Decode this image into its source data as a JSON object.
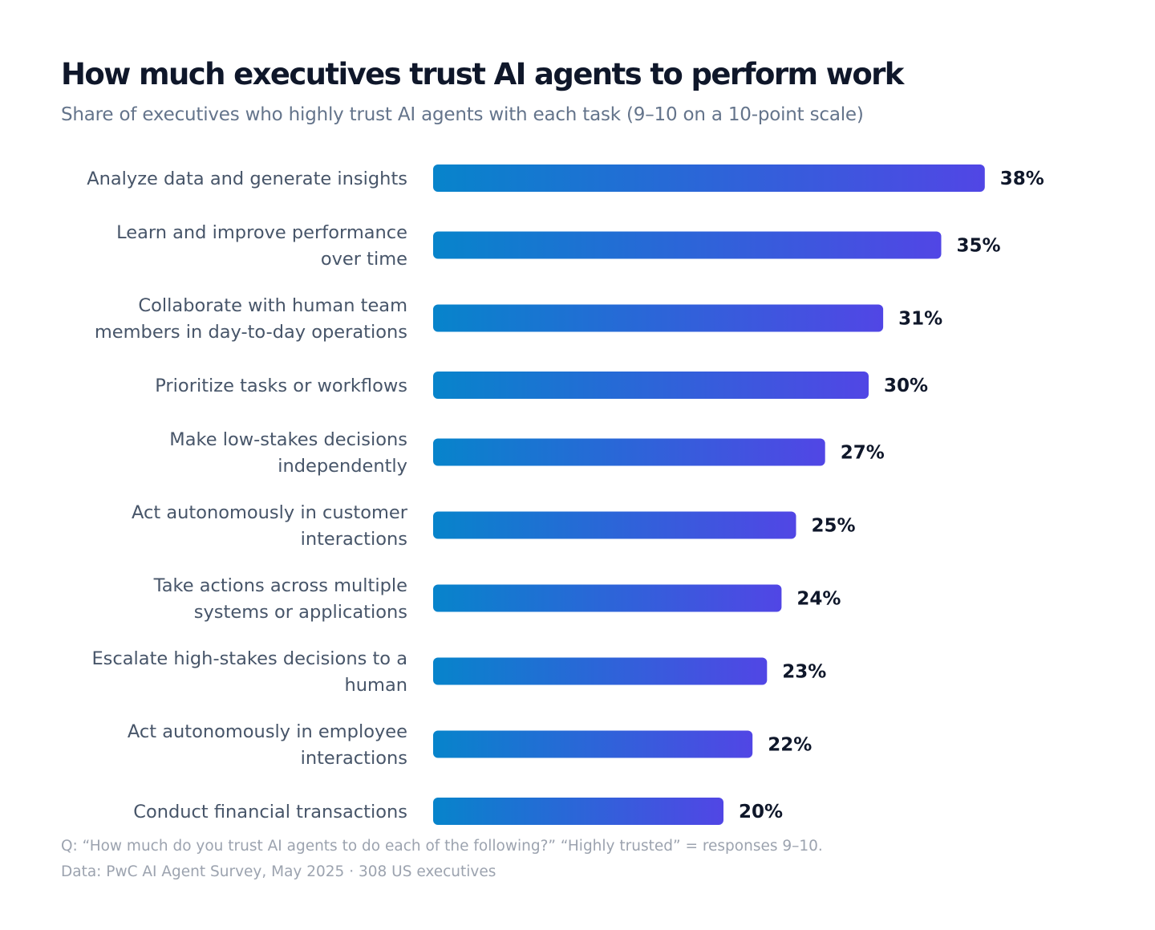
{
  "title": "How much executives trust AI agents to perform work",
  "subtitle": "Share of executives who highly trust AI agents with each task (9–10 on a 10-point scale)",
  "footnotes": {
    "question": "Q: “How much do you trust AI agents to do each of the following?” “Highly trusted” = responses 9–10.",
    "source": "Data: PwC AI Agent Survey, May 2025 · 308 US executives"
  },
  "colors": {
    "bar_gradient_start": "#0784cb",
    "bar_gradient_end": "#5146e5",
    "value_text": "#0f172a",
    "category_text": "#475569"
  },
  "chart_data": {
    "type": "bar",
    "orientation": "horizontal",
    "title": "How much executives trust AI agents to perform work",
    "subtitle": "Share of executives who highly trust AI agents with each task (9–10 on a 10-point scale)",
    "value_suffix": "%",
    "xlim": [
      0,
      40
    ],
    "grid": false,
    "categories": [
      [
        "Analyze data and generate insights"
      ],
      [
        "Learn and improve performance",
        "over time"
      ],
      [
        "Collaborate with human team",
        "members in day-to-day operations"
      ],
      [
        "Prioritize tasks or workflows"
      ],
      [
        "Make low-stakes decisions",
        "independently"
      ],
      [
        "Act autonomously in customer",
        "interactions"
      ],
      [
        "Take actions across multiple",
        "systems or applications"
      ],
      [
        "Escalate high-stakes decisions to a",
        "human"
      ],
      [
        "Act autonomously in employee",
        "interactions"
      ],
      [
        "Conduct financial transactions"
      ]
    ],
    "values": [
      38,
      35,
      31,
      30,
      27,
      25,
      24,
      23,
      22,
      20
    ]
  }
}
